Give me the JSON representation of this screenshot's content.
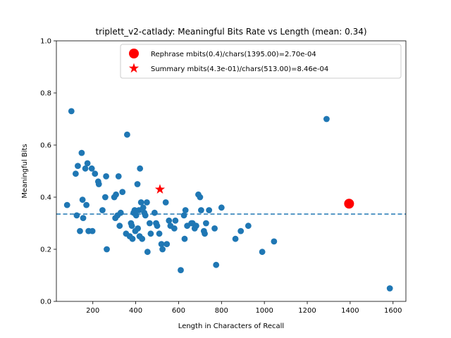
{
  "chart_data": {
    "type": "scatter",
    "title": "triplett_v2-catlady: Meaningful Bits Rate vs Length (mean: 0.34)",
    "xlabel": "Length in Characters of Recall",
    "ylabel": "Meaningful Bits",
    "xlim": [
      30,
      1660
    ],
    "ylim": [
      0,
      1.0
    ],
    "xticks": [
      200,
      400,
      600,
      800,
      1000,
      1200,
      1400,
      1600
    ],
    "yticks": [
      0.0,
      0.2,
      0.4,
      0.6,
      0.8,
      1.0
    ],
    "mean_line": 0.335,
    "legend_position": "top-right",
    "colors": {
      "points": "#1f77b4",
      "mean_line": "#1f77b4",
      "highlight": "#ff0000"
    },
    "points": [
      [
        80,
        0.37
      ],
      [
        100,
        0.73
      ],
      [
        120,
        0.49
      ],
      [
        125,
        0.33
      ],
      [
        130,
        0.52
      ],
      [
        140,
        0.27
      ],
      [
        148,
        0.57
      ],
      [
        152,
        0.39
      ],
      [
        155,
        0.32
      ],
      [
        165,
        0.51
      ],
      [
        170,
        0.37
      ],
      [
        175,
        0.53
      ],
      [
        180,
        0.27
      ],
      [
        195,
        0.51
      ],
      [
        198,
        0.27
      ],
      [
        210,
        0.49
      ],
      [
        225,
        0.46
      ],
      [
        228,
        0.45
      ],
      [
        245,
        0.35
      ],
      [
        258,
        0.4
      ],
      [
        262,
        0.48
      ],
      [
        265,
        0.2
      ],
      [
        300,
        0.4
      ],
      [
        305,
        0.32
      ],
      [
        308,
        0.41
      ],
      [
        315,
        0.33
      ],
      [
        320,
        0.48
      ],
      [
        325,
        0.29
      ],
      [
        330,
        0.34
      ],
      [
        338,
        0.42
      ],
      [
        355,
        0.26
      ],
      [
        360,
        0.64
      ],
      [
        372,
        0.25
      ],
      [
        378,
        0.3
      ],
      [
        382,
        0.29
      ],
      [
        385,
        0.24
      ],
      [
        390,
        0.34
      ],
      [
        395,
        0.35
      ],
      [
        398,
        0.27
      ],
      [
        402,
        0.33
      ],
      [
        408,
        0.45
      ],
      [
        410,
        0.28
      ],
      [
        415,
        0.35
      ],
      [
        418,
        0.25
      ],
      [
        420,
        0.51
      ],
      [
        425,
        0.38
      ],
      [
        430,
        0.24
      ],
      [
        435,
        0.36
      ],
      [
        440,
        0.34
      ],
      [
        445,
        0.33
      ],
      [
        452,
        0.38
      ],
      [
        455,
        0.19
      ],
      [
        465,
        0.3
      ],
      [
        470,
        0.26
      ],
      [
        488,
        0.34
      ],
      [
        495,
        0.3
      ],
      [
        500,
        0.29
      ],
      [
        510,
        0.26
      ],
      [
        520,
        0.22
      ],
      [
        525,
        0.2
      ],
      [
        540,
        0.38
      ],
      [
        545,
        0.22
      ],
      [
        555,
        0.31
      ],
      [
        562,
        0.29
      ],
      [
        580,
        0.28
      ],
      [
        585,
        0.31
      ],
      [
        610,
        0.12
      ],
      [
        625,
        0.33
      ],
      [
        628,
        0.24
      ],
      [
        632,
        0.35
      ],
      [
        640,
        0.29
      ],
      [
        660,
        0.3
      ],
      [
        665,
        0.3
      ],
      [
        675,
        0.28
      ],
      [
        682,
        0.29
      ],
      [
        692,
        0.41
      ],
      [
        700,
        0.4
      ],
      [
        705,
        0.35
      ],
      [
        718,
        0.27
      ],
      [
        722,
        0.26
      ],
      [
        728,
        0.3
      ],
      [
        742,
        0.35
      ],
      [
        768,
        0.28
      ],
      [
        775,
        0.14
      ],
      [
        800,
        0.36
      ],
      [
        865,
        0.24
      ],
      [
        890,
        0.27
      ],
      [
        925,
        0.29
      ],
      [
        990,
        0.19
      ],
      [
        1045,
        0.23
      ],
      [
        1290,
        0.7
      ],
      [
        1585,
        0.05
      ]
    ],
    "rephrase": {
      "x": 1395,
      "y": 0.375,
      "label": "Rephrase mbits(0.4)/chars(1395.00)=2.70e-04"
    },
    "summary": {
      "x": 513,
      "y": 0.43,
      "label": "Summary mbits(4.3e-01)/chars(513.00)=8.46e-04"
    }
  }
}
